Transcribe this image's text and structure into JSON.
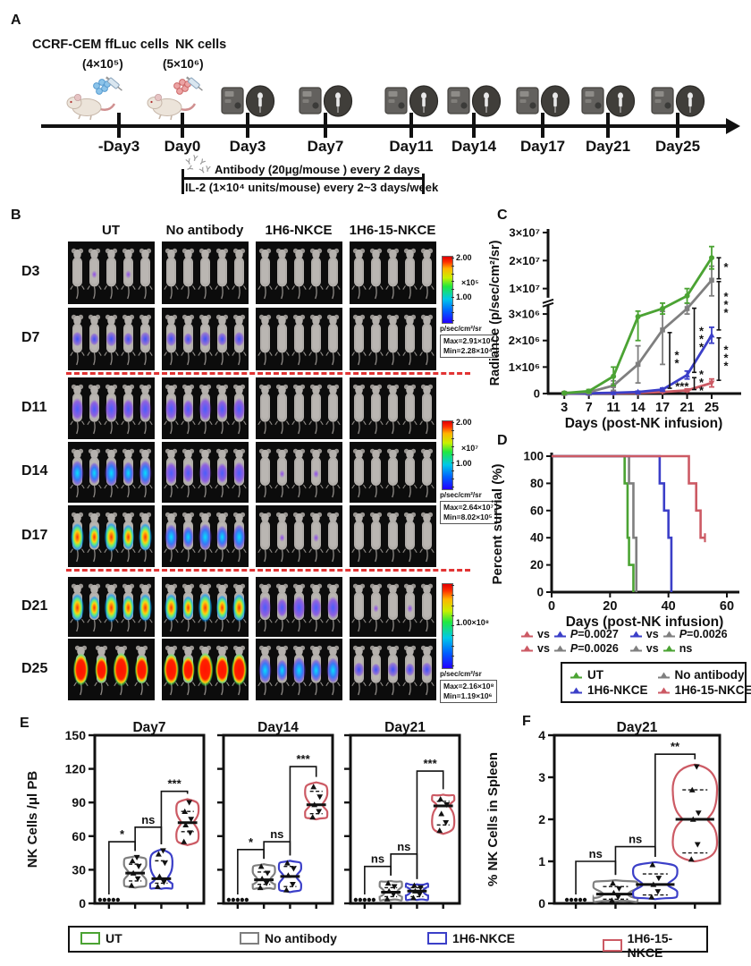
{
  "colors": {
    "ut": "#4ba333",
    "no_antibody": "#7f7f7f",
    "h6": "#3b3fc8",
    "h615": "#cc5a64",
    "dashed_separator": "#e23434"
  },
  "panelA": {
    "label": "A",
    "cells_label_1": "CCRF-CEM ffLuc cells",
    "cells_label_2": "NK cells",
    "dose_1": "(4×10⁵)",
    "dose_2": "(5×10⁶)",
    "timeline_days": [
      "-Day3",
      "Day0",
      "Day3",
      "Day7",
      "Day11",
      "Day14",
      "Day17",
      "Day21",
      "Day25"
    ],
    "antibody_note": "Antibody (20μg/mouse ) every 2 days",
    "il2_note": "IL-2 (1×10⁴ units/mouse) every 2~3 days/week"
  },
  "panelB": {
    "label": "B",
    "columns": [
      "UT",
      "No antibody",
      "1H6-NKCE",
      "1H6-15-NKCE"
    ],
    "rows": [
      {
        "label": "D3",
        "levels": [
          "spot",
          "none",
          "none",
          "none"
        ],
        "mice": [
          5,
          5,
          5,
          5
        ]
      },
      {
        "label": "D7",
        "levels": [
          "low",
          "low",
          "none",
          "none"
        ],
        "mice": [
          5,
          5,
          5,
          5
        ]
      },
      {
        "label": "D11",
        "levels": [
          "med",
          "med",
          "none",
          "none"
        ],
        "mice": [
          5,
          5,
          5,
          5
        ]
      },
      {
        "label": "D14",
        "levels": [
          "high",
          "med",
          "spot",
          "none"
        ],
        "mice": [
          5,
          5,
          5,
          5
        ]
      },
      {
        "label": "D17",
        "levels": [
          "extreme",
          "high",
          "spot",
          "none"
        ],
        "mice": [
          5,
          5,
          5,
          5
        ]
      },
      {
        "label": "D21",
        "levels": [
          "extreme",
          "extreme",
          "med",
          "spot"
        ],
        "mice": [
          5,
          5,
          5,
          5
        ]
      },
      {
        "label": "D25",
        "levels": [
          "full",
          "full",
          "high",
          "low"
        ],
        "mice": [
          4,
          5,
          5,
          5
        ]
      }
    ],
    "separators_after_rows": [
      1,
      4
    ],
    "colorbars": [
      {
        "top_label": "2.00",
        "scale": "×10⁵",
        "mid_label": "1.00",
        "unit": "p/sec/cm²/sr",
        "max": "Max=2.91×10⁵",
        "min": "Min=2.28×10⁴"
      },
      {
        "top_label": "2.00",
        "scale": "×10⁷",
        "mid_label": "1.00",
        "unit": "p/sec/cm²/sr",
        "max": "Max=2.64×10⁷",
        "min": "Min=8.02×10⁵"
      },
      {
        "top_label": "",
        "scale": "",
        "mid_label": "1.00×10⁸",
        "unit": "p/sec/cm²/sr",
        "max": "Max=2.16×10⁸",
        "min": "Min=1.19×10⁶"
      }
    ]
  },
  "panelC": {
    "label": "C"
  },
  "panelD": {
    "label": "D",
    "stats": [
      {
        "a": "h615",
        "b": "h6",
        "vs": "vs",
        "label": "P=0.0027"
      },
      {
        "a": "h6",
        "b": "no_antibody",
        "vs": "vs",
        "label": "P=0.0026"
      },
      {
        "a": "h615",
        "b": "no_antibody",
        "vs": "vs",
        "label": "P=0.0026"
      },
      {
        "a": "no_antibody",
        "b": "ut",
        "vs": "vs",
        "label": "ns"
      }
    ],
    "legend": [
      {
        "key": "ut",
        "label": "UT"
      },
      {
        "key": "no_antibody",
        "label": "No antibody"
      },
      {
        "key": "h6",
        "label": "1H6-NKCE"
      },
      {
        "key": "h615",
        "label": "1H6-15-NKCE"
      }
    ]
  },
  "panelE": {
    "label": "E"
  },
  "panelF": {
    "label": "F"
  },
  "bottom_legend": [
    {
      "key": "ut",
      "label": "UT"
    },
    {
      "key": "no_antibody",
      "label": "No antibody"
    },
    {
      "key": "h6",
      "label": "1H6-NKCE"
    },
    {
      "key": "h615",
      "label": "1H6-15-NKCE"
    }
  ],
  "chart_data": [
    {
      "id": "C",
      "type": "line",
      "title": "",
      "ylabel": "Radiance (p/sec/cm²/sr)",
      "xlabel": "Days (post-NK infusion)",
      "x": [
        3,
        7,
        11,
        14,
        17,
        21,
        25
      ],
      "y_axis": {
        "lower_ticks": [
          [
            0,
            "0"
          ],
          [
            1000000,
            "1×10⁶"
          ],
          [
            2000000,
            "2×10⁶"
          ],
          [
            3000000,
            "3×10⁶"
          ]
        ],
        "upper_ticks": [
          [
            10000000,
            "1×10⁷"
          ],
          [
            20000000,
            "2×10⁷"
          ],
          [
            30000000,
            "3×10⁷"
          ]
        ],
        "break_between": [
          3000000,
          10000000
        ]
      },
      "series": [
        {
          "key": "ut",
          "name": "UT",
          "values": [
            20000,
            90000,
            650000,
            2900000,
            4500000,
            8000000,
            21000000
          ],
          "errors": [
            15000,
            60000,
            350000,
            900000,
            1500000,
            2000000,
            4000000
          ]
        },
        {
          "key": "no_antibody",
          "name": "No antibody",
          "values": [
            10000,
            50000,
            300000,
            1100000,
            2400000,
            4500000,
            13000000
          ],
          "errors": [
            8000,
            30000,
            180000,
            700000,
            1300000,
            1500000,
            5000000
          ]
        },
        {
          "key": "h6",
          "name": "1H6-NKCE",
          "values": [
            5000,
            10000,
            30000,
            60000,
            150000,
            700000,
            2200000
          ],
          "errors": [
            3000,
            6000,
            15000,
            30000,
            60000,
            150000,
            300000
          ]
        },
        {
          "key": "h615",
          "name": "1H6-15-NKCE",
          "values": [
            5000,
            8000,
            15000,
            25000,
            60000,
            120000,
            400000
          ],
          "errors": [
            3000,
            5000,
            8000,
            12000,
            25000,
            50000,
            150000
          ]
        }
      ],
      "annotations": [
        {
          "x": 17,
          "y1": 2300000,
          "y2": 200000,
          "label": "**"
        },
        {
          "x": 21,
          "y1": 4600000,
          "y2": 800000,
          "label": "***"
        },
        {
          "x": 19,
          "y1": 260000,
          "y2": 260000,
          "label": "***",
          "text_only": true
        },
        {
          "x": 21,
          "y1": 600000,
          "y2": 150000,
          "label": "***"
        },
        {
          "x": 25,
          "y1": 21000000,
          "y2": 13500000,
          "label": "*"
        },
        {
          "x": 25,
          "y1": 12500000,
          "y2": 2400000,
          "label": "***"
        },
        {
          "x": 25,
          "y1": 2100000,
          "y2": 500000,
          "label": "***"
        }
      ]
    },
    {
      "id": "D",
      "type": "survival",
      "title": "",
      "ylabel": "Percent survial (%)",
      "xlabel": "Days (post-NK infusion)",
      "xlim": [
        0,
        60
      ],
      "xticks": [
        0,
        20,
        40,
        60
      ],
      "ylim": [
        0,
        100
      ],
      "yticks": [
        0,
        20,
        40,
        60,
        80,
        100
      ],
      "series": [
        {
          "key": "ut",
          "name": "UT",
          "steps": [
            [
              0,
              100
            ],
            [
              25,
              100
            ],
            [
              25,
              80
            ],
            [
              26,
              80
            ],
            [
              26,
              40
            ],
            [
              26.5,
              40
            ],
            [
              26.5,
              20
            ],
            [
              28,
              20
            ],
            [
              28,
              0
            ]
          ]
        },
        {
          "key": "no_antibody",
          "name": "No antibody",
          "steps": [
            [
              0,
              100
            ],
            [
              26.5,
              100
            ],
            [
              26.5,
              80
            ],
            [
              28,
              80
            ],
            [
              28,
              40
            ],
            [
              29,
              40
            ],
            [
              29,
              0
            ]
          ]
        },
        {
          "key": "h6",
          "name": "1H6-NKCE",
          "steps": [
            [
              0,
              100
            ],
            [
              37,
              100
            ],
            [
              37,
              80
            ],
            [
              38.5,
              80
            ],
            [
              38.5,
              60
            ],
            [
              40,
              60
            ],
            [
              40,
              40
            ],
            [
              41,
              40
            ],
            [
              41,
              0
            ]
          ]
        },
        {
          "key": "h615",
          "name": "1H6-15-NKCE",
          "steps": [
            [
              0,
              100
            ],
            [
              47,
              100
            ],
            [
              47,
              80
            ],
            [
              49.5,
              80
            ],
            [
              49.5,
              60
            ],
            [
              51,
              60
            ],
            [
              51,
              40
            ],
            [
              52.5,
              40
            ]
          ],
          "censored_end": true
        }
      ]
    },
    {
      "id": "E1",
      "type": "violin",
      "title": "Day7",
      "ylabel": "NK Cells /μl PB",
      "ylim": [
        0,
        150
      ],
      "yticks": [
        0,
        30,
        60,
        90,
        120,
        150
      ],
      "groups": [
        {
          "key": "ut",
          "zero": true,
          "points": [
            0,
            0,
            0,
            0,
            0
          ]
        },
        {
          "key": "no_antibody",
          "min": 14,
          "max": 42,
          "median": 27,
          "q1": 20,
          "q3": 35,
          "points": [
            16,
            22,
            27,
            33,
            38,
            41
          ]
        },
        {
          "key": "h6",
          "min": 13,
          "max": 48,
          "median": 22,
          "q1": 18,
          "q3": 38,
          "points": [
            15,
            19,
            24,
            36,
            44,
            47
          ]
        },
        {
          "key": "h615",
          "min": 52,
          "max": 93,
          "median": 72,
          "q1": 64,
          "q3": 82,
          "points": [
            55,
            63,
            70,
            75,
            82,
            90
          ]
        }
      ],
      "sig": [
        {
          "a": 0,
          "b": 1,
          "label": "*",
          "level": 55
        },
        {
          "a": 1,
          "b": 2,
          "label": "ns",
          "level": 68
        },
        {
          "a": 2,
          "b": 3,
          "label": "***",
          "level": 100
        }
      ]
    },
    {
      "id": "E2",
      "type": "violin",
      "title": "Day14",
      "ylabel": "",
      "ylim": [
        0,
        150
      ],
      "yticks": [
        0,
        30,
        60,
        90,
        120,
        150
      ],
      "groups": [
        {
          "key": "ut",
          "zero": true,
          "points": [
            0,
            0,
            0,
            0,
            0
          ]
        },
        {
          "key": "no_antibody",
          "min": 13,
          "max": 35,
          "median": 21,
          "q1": 17,
          "q3": 28,
          "points": [
            14,
            18,
            22,
            27,
            33
          ]
        },
        {
          "key": "h6",
          "min": 10,
          "max": 38,
          "median": 24,
          "q1": 15,
          "q3": 33,
          "points": [
            12,
            17,
            25,
            31,
            36
          ]
        },
        {
          "key": "h615",
          "min": 75,
          "max": 108,
          "median": 88,
          "q1": 80,
          "q3": 100,
          "points": [
            77,
            82,
            88,
            95,
            104
          ]
        }
      ],
      "sig": [
        {
          "a": 0,
          "b": 1,
          "label": "*",
          "level": 48
        },
        {
          "a": 1,
          "b": 2,
          "label": "ns",
          "level": 55
        },
        {
          "a": 2,
          "b": 3,
          "label": "***",
          "level": 122
        }
      ]
    },
    {
      "id": "E3",
      "type": "violin",
      "title": "Day21",
      "ylabel": "",
      "ylim": [
        0,
        150
      ],
      "yticks": [
        0,
        30,
        60,
        90,
        120,
        150
      ],
      "groups": [
        {
          "key": "ut",
          "zero": true,
          "points": [
            0,
            0,
            0,
            0,
            0
          ]
        },
        {
          "key": "no_antibody",
          "min": 3,
          "max": 20,
          "median": 10,
          "q1": 6,
          "q3": 14,
          "points": [
            4,
            8,
            11,
            15,
            18
          ]
        },
        {
          "key": "h6",
          "min": 3,
          "max": 17,
          "median": 11,
          "q1": 6,
          "q3": 14,
          "points": [
            5,
            8,
            11,
            14,
            16
          ]
        },
        {
          "key": "h615",
          "min": 62,
          "max": 97,
          "median": 87,
          "q1": 70,
          "q3": 91,
          "points": [
            65,
            72,
            80,
            88,
            93
          ]
        }
      ],
      "sig": [
        {
          "a": 0,
          "b": 1,
          "label": "ns",
          "level": 33
        },
        {
          "a": 1,
          "b": 2,
          "label": "ns",
          "level": 44
        },
        {
          "a": 2,
          "b": 3,
          "label": "***",
          "level": 118
        }
      ]
    },
    {
      "id": "F",
      "type": "violin",
      "title": "Day21",
      "ylabel": "% NK Cells in Spleen",
      "ylim": [
        0,
        4
      ],
      "yticks": [
        0,
        1,
        2,
        3,
        4
      ],
      "groups": [
        {
          "key": "ut",
          "zero": true,
          "points": [
            0,
            0,
            0,
            0,
            0
          ]
        },
        {
          "key": "no_antibody",
          "min": 0.05,
          "max": 0.55,
          "median": 0.22,
          "q1": 0.1,
          "q3": 0.4,
          "points": [
            0.07,
            0.15,
            0.25,
            0.35,
            0.48
          ]
        },
        {
          "key": "h6",
          "min": 0.1,
          "max": 0.98,
          "median": 0.45,
          "q1": 0.2,
          "q3": 0.7,
          "points": [
            0.15,
            0.28,
            0.45,
            0.6,
            0.92
          ]
        },
        {
          "key": "h615",
          "min": 1.0,
          "max": 3.3,
          "median": 2.0,
          "q1": 1.2,
          "q3": 2.7,
          "points": [
            1.05,
            1.4,
            2.0,
            2.15,
            2.7,
            3.25
          ]
        }
      ],
      "sig": [
        {
          "a": 0,
          "b": 1,
          "label": "ns",
          "level": 1.0
        },
        {
          "a": 1,
          "b": 2,
          "label": "ns",
          "level": 1.35
        },
        {
          "a": 2,
          "b": 3,
          "label": "**",
          "level": 3.55
        }
      ]
    }
  ]
}
